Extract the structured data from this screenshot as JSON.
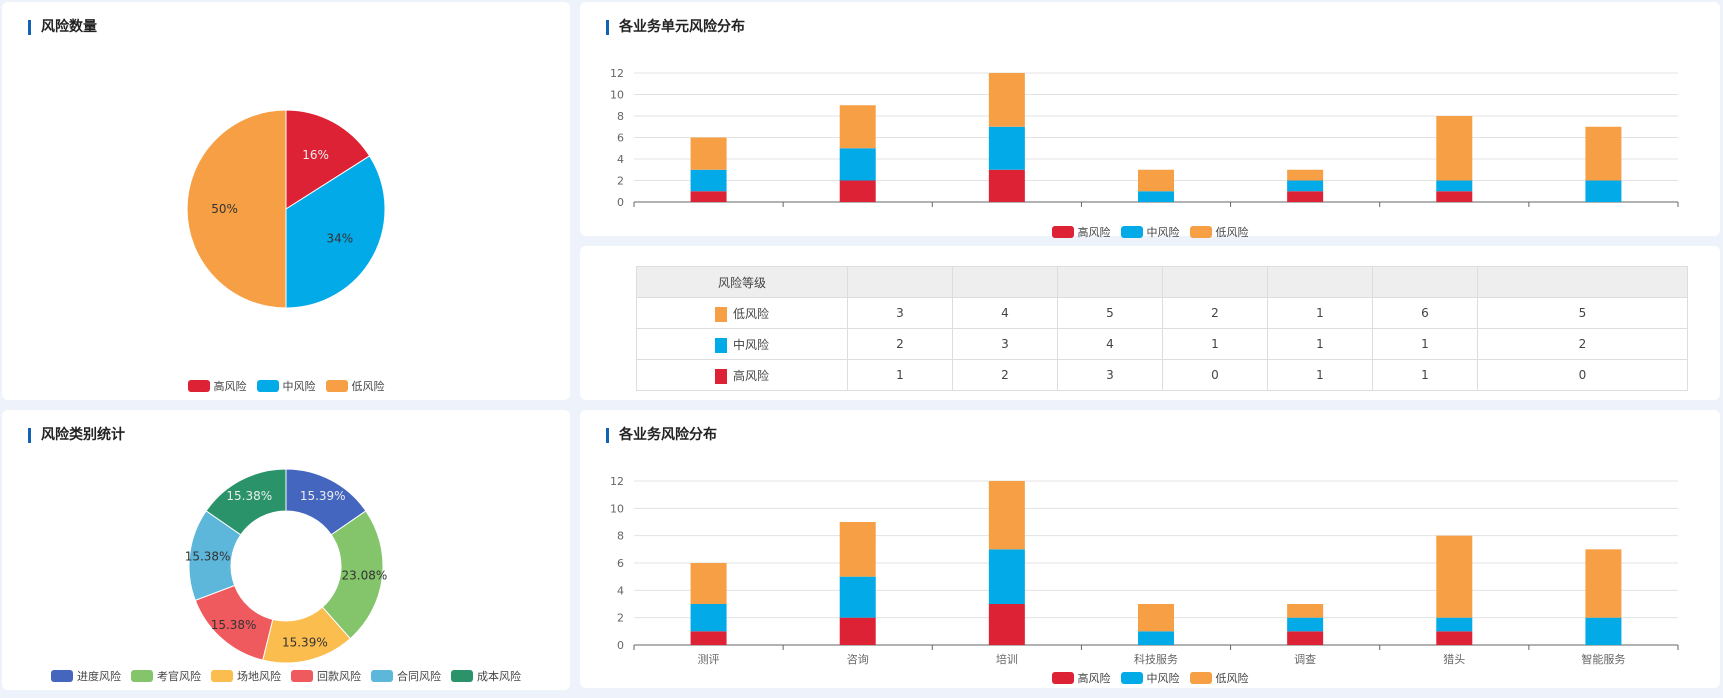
{
  "risk_count": {
    "title": "风险数量",
    "chart_data": {
      "type": "pie",
      "slices": [
        {
          "name": "高风险",
          "value": 16,
          "label": "16%",
          "color": "#dd2235"
        },
        {
          "name": "中风险",
          "value": 34,
          "label": "34%",
          "color": "#03aae8"
        },
        {
          "name": "低风险",
          "value": 50,
          "label": "50%",
          "color": "#f79f44"
        }
      ],
      "legend": "bottom"
    }
  },
  "unit_distribution": {
    "title": "各业务单元风险分布",
    "chart_data": {
      "type": "bar",
      "stacked": true,
      "categories": [
        "",
        "",
        "",
        "",
        "",
        "",
        ""
      ],
      "series": [
        {
          "name": "高风险",
          "values": [
            1,
            2,
            3,
            0,
            1,
            1,
            0
          ],
          "color": "#dd2235"
        },
        {
          "name": "中风险",
          "values": [
            2,
            3,
            4,
            1,
            1,
            1,
            2
          ],
          "color": "#03aae8"
        },
        {
          "name": "低风险",
          "values": [
            3,
            4,
            5,
            2,
            1,
            6,
            5
          ],
          "color": "#f79f44"
        }
      ],
      "ylim": [
        0,
        12
      ],
      "yticks": [
        0,
        2,
        4,
        6,
        8,
        10,
        12
      ],
      "grid": true,
      "legend": "bottom"
    }
  },
  "table": {
    "header_first": "风险等级",
    "columns": [
      "",
      "",
      "",
      "",
      "",
      "",
      ""
    ],
    "rows": [
      {
        "level": "低风险",
        "color": "#f79f44",
        "values": [
          "3",
          "4",
          "5",
          "2",
          "1",
          "6",
          "5"
        ]
      },
      {
        "level": "中风险",
        "color": "#03aae8",
        "values": [
          "2",
          "3",
          "4",
          "1",
          "1",
          "1",
          "2"
        ]
      },
      {
        "level": "高风险",
        "color": "#dd2235",
        "values": [
          "1",
          "2",
          "3",
          "0",
          "1",
          "1",
          "0"
        ]
      }
    ]
  },
  "category_stats": {
    "title": "风险类别统计",
    "chart_data": {
      "type": "pie",
      "donut": true,
      "slices": [
        {
          "name": "进度风险",
          "value": 15.39,
          "label": "15.39%",
          "color": "#4466bf"
        },
        {
          "name": "考官风险",
          "value": 23.08,
          "label": "23.08%",
          "color": "#84c56c"
        },
        {
          "name": "场地风险",
          "value": 15.39,
          "label": "15.39%",
          "color": "#fcbd4f"
        },
        {
          "name": "回款风险",
          "value": 15.38,
          "label": "15.38%",
          "color": "#ef5a5f"
        },
        {
          "name": "合同风险",
          "value": 15.38,
          "label": "15.38%",
          "color": "#5db7db"
        },
        {
          "name": "成本风险",
          "value": 15.38,
          "label": "15.38%",
          "color": "#2a936a"
        }
      ],
      "legend": "bottom"
    }
  },
  "business_distribution": {
    "title": "各业务风险分布",
    "chart_data": {
      "type": "bar",
      "stacked": true,
      "categories": [
        "测评",
        "咨询",
        "培训",
        "科技服务",
        "调查",
        "猎头",
        "智能服务"
      ],
      "series": [
        {
          "name": "高风险",
          "values": [
            1,
            2,
            3,
            0,
            1,
            1,
            0
          ],
          "color": "#dd2235"
        },
        {
          "name": "中风险",
          "values": [
            2,
            3,
            4,
            1,
            1,
            1,
            2
          ],
          "color": "#03aae8"
        },
        {
          "name": "低风险",
          "values": [
            3,
            4,
            5,
            2,
            1,
            6,
            5
          ],
          "color": "#f79f44"
        }
      ],
      "ylim": [
        0,
        12
      ],
      "yticks": [
        0,
        2,
        4,
        6,
        8,
        10,
        12
      ],
      "grid": true,
      "legend": "bottom"
    }
  }
}
